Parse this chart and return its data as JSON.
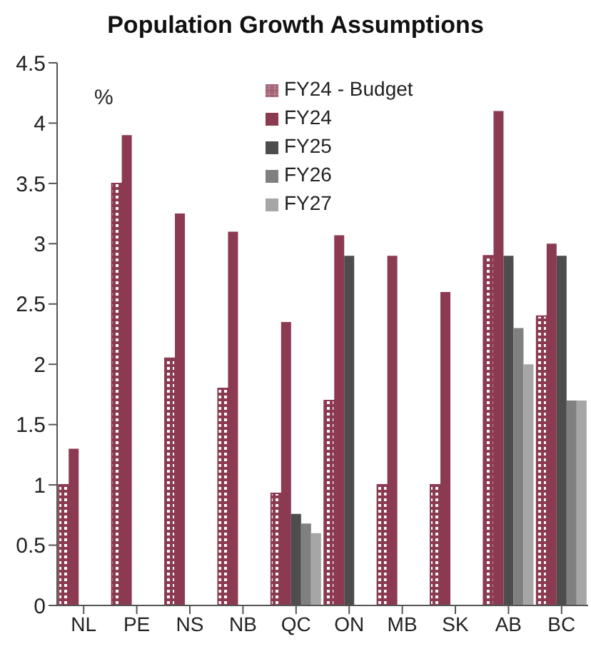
{
  "chart_data": {
    "type": "bar",
    "title": "Population Growth Assumptions",
    "annotations": [
      "%"
    ],
    "categories": [
      "NL",
      "PE",
      "NS",
      "NB",
      "QC",
      "ON",
      "MB",
      "SK",
      "AB",
      "BC"
    ],
    "series": [
      {
        "name": "FY24 - Budget",
        "color": "#8b3a52",
        "values": [
          1.0,
          3.5,
          2.05,
          1.8,
          0.93,
          1.7,
          1.0,
          1.0,
          2.9,
          2.4
        ]
      },
      {
        "name": "FY24",
        "color": "#8b3a52",
        "values": [
          1.3,
          3.9,
          3.25,
          3.1,
          2.35,
          3.07,
          2.9,
          2.6,
          4.1,
          3.0
        ]
      },
      {
        "name": "FY25",
        "color": "#4d4d4d",
        "values": [
          null,
          null,
          null,
          null,
          0.76,
          2.9,
          null,
          null,
          2.9,
          2.9
        ]
      },
      {
        "name": "FY26",
        "color": "#808080",
        "values": [
          null,
          null,
          null,
          null,
          0.68,
          null,
          null,
          null,
          2.3,
          1.7
        ]
      },
      {
        "name": "FY27",
        "color": "#a6a6a6",
        "values": [
          null,
          null,
          null,
          null,
          0.6,
          null,
          null,
          null,
          2.0,
          1.7
        ]
      }
    ],
    "ylim": [
      0,
      4.5
    ],
    "yticks": [
      0,
      0.5,
      1,
      1.5,
      2,
      2.5,
      3,
      3.5,
      4,
      4.5
    ],
    "grid": false,
    "legend": "top right"
  }
}
